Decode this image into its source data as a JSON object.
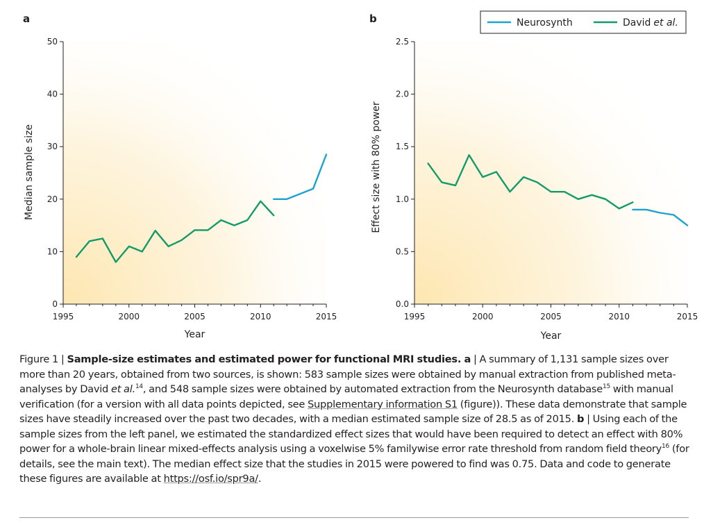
{
  "colors": {
    "neurosynth": "#1aa3cf",
    "david": "#139a6a",
    "axis": "#231f20",
    "bg_glow": "#fde6b0"
  },
  "legend": {
    "items": [
      {
        "label": "Neurosynth",
        "color": "#1aa3cf"
      },
      {
        "label": "David",
        "label_italic": "et al.",
        "color": "#139a6a"
      }
    ],
    "placement": "top-right"
  },
  "chart_data": [
    {
      "panel": "a",
      "type": "line",
      "xlabel": "Year",
      "ylabel": "Median sample size",
      "xlim": [
        1995,
        2015
      ],
      "ylim": [
        0,
        50
      ],
      "xticks": [
        1995,
        2000,
        2005,
        2010,
        2015
      ],
      "yticks": [
        0,
        10,
        20,
        30,
        40,
        50
      ],
      "grid": false,
      "series": [
        {
          "name": "David et al.",
          "color": "#139a6a",
          "x": [
            1996,
            1997,
            1998,
            1999,
            2000,
            2001,
            2002,
            2003,
            2004,
            2005,
            2006,
            2007,
            2008,
            2009,
            2010,
            2011
          ],
          "y": [
            9,
            12,
            12.5,
            8,
            11,
            10,
            14,
            11,
            12.2,
            14.1,
            14.1,
            16,
            15,
            16,
            19.6,
            16.9
          ]
        },
        {
          "name": "Neurosynth",
          "color": "#1aa3cf",
          "x": [
            2011,
            2012,
            2013,
            2014,
            2015
          ],
          "y": [
            20,
            20,
            21,
            22,
            28.5
          ]
        }
      ]
    },
    {
      "panel": "b",
      "type": "line",
      "xlabel": "Year",
      "ylabel": "Effect size with 80% power",
      "xlim": [
        1995,
        2015
      ],
      "ylim": [
        0,
        2.5
      ],
      "xticks": [
        1995,
        2000,
        2005,
        2010,
        2015
      ],
      "yticks": [
        "0.0",
        "0.5",
        "1.0",
        "1.5",
        "2.0",
        "2.5"
      ],
      "grid": false,
      "series": [
        {
          "name": "David et al.",
          "color": "#139a6a",
          "x": [
            1996,
            1997,
            1998,
            1999,
            2000,
            2001,
            2002,
            2003,
            2004,
            2005,
            2006,
            2007,
            2008,
            2009,
            2010,
            2011
          ],
          "y": [
            1.34,
            1.16,
            1.13,
            1.42,
            1.21,
            1.26,
            1.07,
            1.21,
            1.16,
            1.07,
            1.07,
            1.0,
            1.04,
            1.0,
            0.91,
            0.97
          ]
        },
        {
          "name": "Neurosynth",
          "color": "#1aa3cf",
          "x": [
            2011,
            2012,
            2013,
            2014,
            2015
          ],
          "y": [
            0.9,
            0.9,
            0.87,
            0.85,
            0.75
          ]
        }
      ]
    }
  ],
  "caption": {
    "figure_label": "Figure 1 | ",
    "title": "Sample-size estimates and estimated power for functional MRI studies.",
    "panel_a": " a",
    "text1": " | A summary of 1,131 sample sizes over more than 20 years, obtained from two sources, is shown: 583 sample sizes were obtained by manual extraction from published meta-analyses by David ",
    "etal": "et al.",
    "ref14": "14",
    "text2": ", and 548 sample sizes were obtained by automated extraction from the Neurosynth database",
    "ref15": "15",
    "text3": " with manual verification (for a version with all data points depicted, see ",
    "supp_link": "Supplementary information S1",
    "text4": " (figure)). These data demonstrate that sample sizes have steadily increased over the past two decades, with a median estimated sample size of 28.5 as of 2015. ",
    "panel_b": "b",
    "text5": " | Using each of the sample sizes from the left panel, we estimated the standardized effect sizes that would have been required to detect an effect with 80% power for a whole-brain linear mixed-effects analysis using a voxelwise 5% familywise error rate threshold from random field theory",
    "ref16": "16",
    "text6": " (for details, see the main text). The median effect size that the studies in 2015 were powered to find was 0.75. Data and code to generate these figures are available at ",
    "url": "https://osf.io/spr9a/",
    "text7": "."
  }
}
